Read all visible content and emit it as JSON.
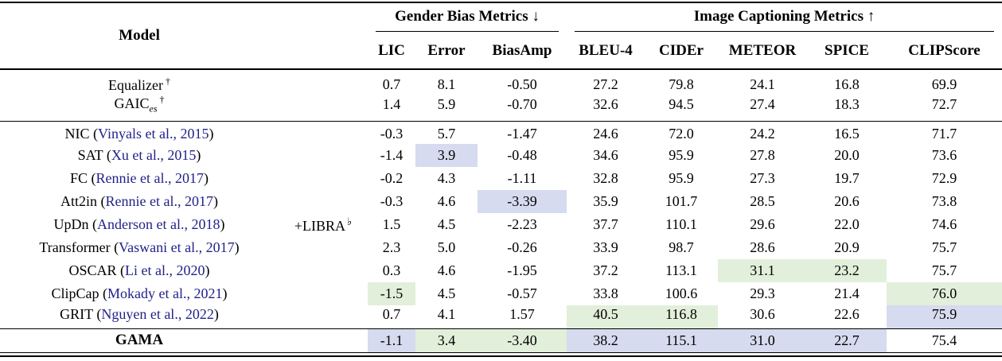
{
  "colors": {
    "highlight_blue": "#d6dbef",
    "highlight_green": "#e2efda",
    "citation": "#22228a"
  },
  "header": {
    "model": "Model",
    "groups": [
      {
        "label": "Gender Bias Metrics",
        "arrow": "↓"
      },
      {
        "label": "Image Captioning Metrics",
        "arrow": "↑"
      }
    ],
    "metrics": [
      "LIC",
      "Error",
      "BiasAmp",
      "BLEU-4",
      "CIDEr",
      "METEOR",
      "SPICE",
      "CLIPScore"
    ]
  },
  "libra": {
    "label": "+LIBRA",
    "symbol": "♭"
  },
  "sections": {
    "baselines": [
      {
        "name": "Equalizer",
        "sup": "†",
        "values": [
          "0.7",
          "8.1",
          "-0.50",
          "27.2",
          "79.8",
          "24.1",
          "16.8",
          "69.9"
        ]
      },
      {
        "name": "GAIC",
        "sub": "es",
        "sup": "†",
        "values": [
          "1.4",
          "5.9",
          "-0.70",
          "32.6",
          "94.5",
          "27.4",
          "18.3",
          "72.7"
        ]
      }
    ],
    "models": [
      {
        "name": "NIC",
        "cite": "Vinyals et al., 2015",
        "values": [
          "-0.3",
          "5.7",
          "-1.47",
          "24.6",
          "72.0",
          "24.2",
          "16.5",
          "71.7"
        ]
      },
      {
        "name": "SAT",
        "cite": "Xu et al., 2015",
        "values": [
          "-1.4",
          "3.9",
          "-0.48",
          "34.6",
          "95.9",
          "27.8",
          "20.0",
          "73.6"
        ],
        "hl": [
          null,
          "blue",
          null,
          null,
          null,
          null,
          null,
          null
        ]
      },
      {
        "name": "FC",
        "cite": "Rennie et al., 2017",
        "values": [
          "-0.2",
          "4.3",
          "-1.11",
          "32.8",
          "95.9",
          "27.3",
          "19.7",
          "72.9"
        ]
      },
      {
        "name": "Att2in",
        "cite": "Rennie et al., 2017",
        "values": [
          "-0.3",
          "4.6",
          "-3.39",
          "35.9",
          "101.7",
          "28.5",
          "20.6",
          "73.8"
        ],
        "hl": [
          null,
          null,
          "blue",
          null,
          null,
          null,
          null,
          null
        ]
      },
      {
        "name": "UpDn",
        "cite": "Anderson et al., 2018",
        "values": [
          "1.5",
          "4.5",
          "-2.23",
          "37.7",
          "110.1",
          "29.6",
          "22.0",
          "74.6"
        ]
      },
      {
        "name": "Transformer",
        "cite": "Vaswani et al., 2017",
        "values": [
          "2.3",
          "5.0",
          "-0.26",
          "33.9",
          "98.7",
          "28.6",
          "20.9",
          "75.7"
        ]
      },
      {
        "name": "OSCAR",
        "cite": "Li et al., 2020",
        "values": [
          "0.3",
          "4.6",
          "-1.95",
          "37.2",
          "113.1",
          "31.1",
          "23.2",
          "75.7"
        ],
        "hl": [
          null,
          null,
          null,
          null,
          null,
          "green",
          "green",
          null
        ]
      },
      {
        "name": "ClipCap",
        "cite": "Mokady et al., 2021",
        "values": [
          "-1.5",
          "4.5",
          "-0.57",
          "33.8",
          "100.6",
          "29.3",
          "21.4",
          "76.0"
        ],
        "hl": [
          "green",
          null,
          null,
          null,
          null,
          null,
          null,
          "green"
        ]
      },
      {
        "name": "GRIT",
        "cite": "Nguyen et al., 2022",
        "values": [
          "0.7",
          "4.1",
          "1.57",
          "40.5",
          "116.8",
          "30.6",
          "22.6",
          "75.9"
        ],
        "hl": [
          null,
          null,
          null,
          "green",
          "green",
          null,
          null,
          "blue"
        ]
      }
    ],
    "final": [
      {
        "name": "GAMA",
        "values": [
          "-1.1",
          "3.4",
          "-3.40",
          "38.2",
          "115.1",
          "31.0",
          "22.7",
          "75.4"
        ],
        "hl": [
          "blue",
          "green",
          "green",
          "blue",
          "blue",
          "blue",
          "blue",
          null
        ]
      }
    ]
  }
}
